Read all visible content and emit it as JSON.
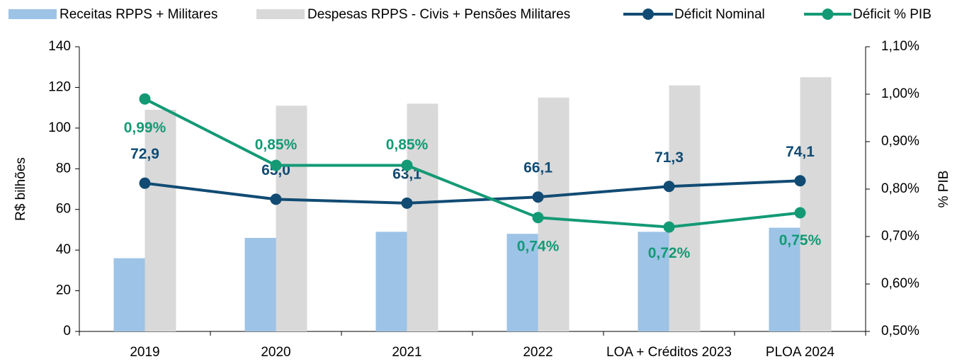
{
  "chart_data": {
    "type": "bar_line",
    "categories": [
      "2019",
      "2020",
      "2021",
      "2022",
      "LOA + Créditos 2023",
      "PLOA 2024"
    ],
    "ylabel": "R$ bilhões",
    "y2label": "% PIB",
    "ylim": [
      0,
      140
    ],
    "yticks": [
      0,
      20,
      40,
      60,
      80,
      100,
      120,
      140
    ],
    "y2lim": [
      0.5,
      1.1
    ],
    "y2ticks": [
      {
        "value": 0.5,
        "label": "0,50%"
      },
      {
        "value": 0.6,
        "label": "0,60%"
      },
      {
        "value": 0.7,
        "label": "0,70%"
      },
      {
        "value": 0.8,
        "label": "0,80%"
      },
      {
        "value": 0.9,
        "label": "0,90%"
      },
      {
        "value": 1.0,
        "label": "1,00%"
      },
      {
        "value": 1.1,
        "label": "1,10%"
      }
    ],
    "series": [
      {
        "name": "Receitas RPPS + Militares",
        "type": "bar",
        "color": "#9dc3e6",
        "values": [
          36,
          46,
          49,
          48,
          49,
          51
        ]
      },
      {
        "name": "Despesas RPPS - Civis + Pensões Militares",
        "type": "bar",
        "color": "#d9d9d9",
        "values": [
          109,
          111,
          112,
          115,
          121,
          125
        ]
      },
      {
        "name": "Déficit Nominal",
        "type": "line",
        "color": "#114b73",
        "values": [
          72.9,
          65.0,
          63.1,
          66.1,
          71.3,
          74.1
        ],
        "value_labels": [
          "72,9",
          "65,0",
          "63,1",
          "66,1",
          "71,3",
          "74,1"
        ]
      },
      {
        "name": "Déficit % PIB",
        "type": "line",
        "axis": "y2",
        "color": "#139a75",
        "values": [
          0.99,
          0.85,
          0.85,
          0.74,
          0.72,
          0.75
        ],
        "value_labels": [
          "0,99%",
          "0,85%",
          "0,85%",
          "0,74%",
          "0,72%",
          "0,75%"
        ]
      }
    ]
  }
}
